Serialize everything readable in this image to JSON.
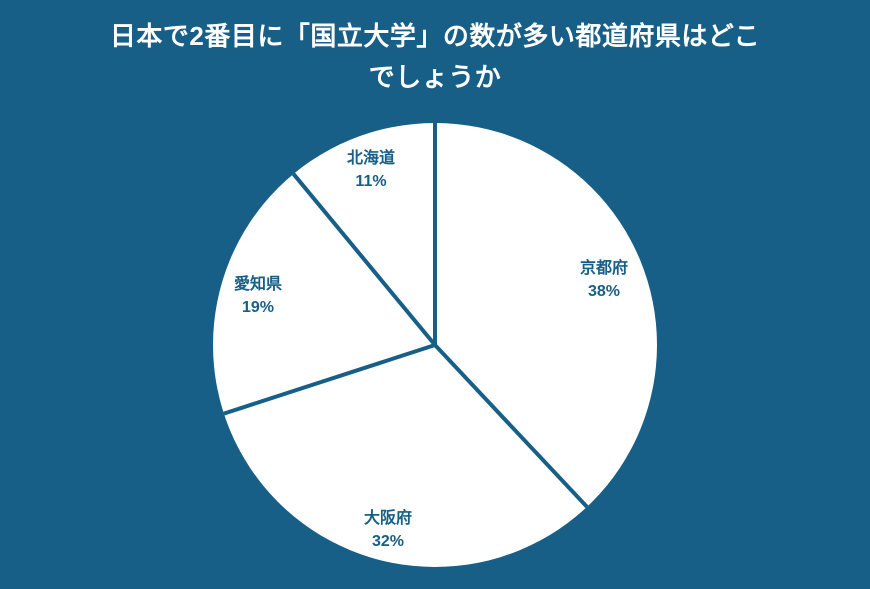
{
  "colors": {
    "background": "#175F87",
    "slice_fill": "#FFFFFF",
    "divider": "#175F87",
    "label_text": "#175F87",
    "title_text": "#FFFFFF"
  },
  "header": {
    "title_full": "日本で2番目に「国立大学」の数が多い都道府県はどこでしょうか",
    "title_lines": [
      "日本で2番目に「国立大学」の数が多い都道府県はどこ",
      "でしょうか"
    ]
  },
  "chart_data": {
    "type": "pie",
    "title": "日本で2番目に「国立大学」の数が多い都道府県はどこでしょうか",
    "start_angle_deg": 0,
    "direction": "clockwise",
    "legend_position": "none",
    "labels_inside_slices": true,
    "slices": [
      {
        "label": "京都府",
        "value": 38,
        "pct_label": "38%"
      },
      {
        "label": "大阪府",
        "value": 32,
        "pct_label": "32%"
      },
      {
        "label": "愛知県",
        "value": 19,
        "pct_label": "19%"
      },
      {
        "label": "北海道",
        "value": 11,
        "pct_label": "11%"
      }
    ]
  }
}
